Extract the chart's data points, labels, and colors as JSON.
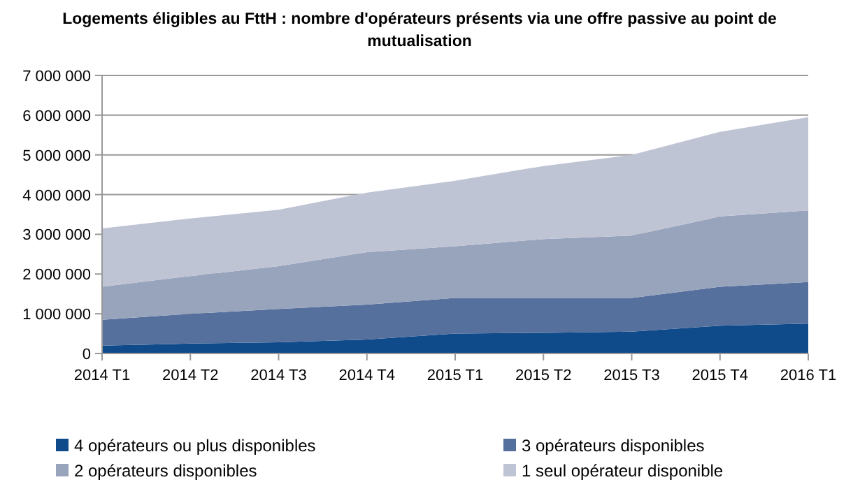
{
  "chart_data": {
    "type": "area",
    "stacked": true,
    "title": "Logements éligibles au FttH : nombre d'opérateurs présents via une offre passive au point de mutualisation",
    "categories": [
      "2014 T1",
      "2014 T2",
      "2014 T3",
      "2014 T4",
      "2015 T1",
      "2015 T2",
      "2015 T3",
      "2015 T4",
      "2016 T1"
    ],
    "series": [
      {
        "name": "4 opérateurs ou plus disponibles",
        "color": "#0f4a8a",
        "values": [
          200000,
          250000,
          280000,
          350000,
          500000,
          520000,
          550000,
          700000,
          750000
        ]
      },
      {
        "name": "3 opérateurs disponibles",
        "color": "#56709e",
        "values": [
          650000,
          750000,
          840000,
          880000,
          900000,
          880000,
          850000,
          980000,
          1050000
        ]
      },
      {
        "name": "2 opérateurs disponibles",
        "color": "#98a3bc",
        "values": [
          830000,
          950000,
          1080000,
          1320000,
          1300000,
          1480000,
          1570000,
          1770000,
          1800000
        ]
      },
      {
        "name": "1 seul opérateur disponible",
        "color": "#bfc4d5",
        "values": [
          1470000,
          1450000,
          1420000,
          1500000,
          1650000,
          1840000,
          2030000,
          2130000,
          2350000
        ]
      }
    ],
    "ylim": [
      0,
      7000000
    ],
    "yticks": [
      0,
      {
        "value": 1000000,
        "label": "1 000 000"
      },
      {
        "value": 2000000,
        "label": "2 000 000"
      },
      {
        "value": 3000000,
        "label": "3 000 000"
      },
      {
        "value": 4000000,
        "label": "4 000 000"
      },
      {
        "value": 5000000,
        "label": "5 000 000"
      },
      {
        "value": 6000000,
        "label": "6 000 000"
      },
      {
        "value": 7000000,
        "label": "7 000 000"
      }
    ],
    "grid": "y",
    "legend": "bottom"
  }
}
